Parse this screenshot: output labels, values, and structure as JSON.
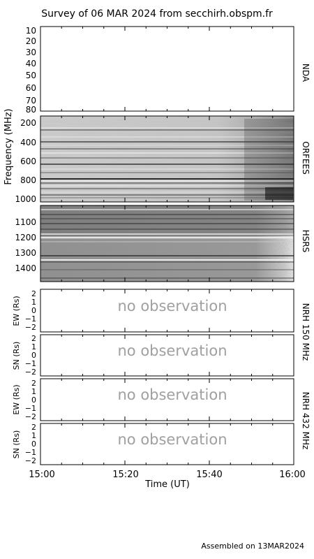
{
  "header": {
    "title": "Survey of 06 MAR 2024 from secchirh.obspm.fr"
  },
  "footer": {
    "assembled": "Assembled on 13MAR2024"
  },
  "chart_data": {
    "type": "heatmap",
    "title": "Survey of 06 MAR 2024 from secchirh.obspm.fr",
    "xlabel": "Time (UT)",
    "x_ticks": [
      "15:00",
      "15:20",
      "15:40",
      "16:00"
    ],
    "spectrogram_ylabel": "Frequency (MHz)",
    "panels": [
      {
        "id": "nda",
        "label": "NDA",
        "y_ticks": [
          "10",
          "20",
          "30",
          "40",
          "50",
          "60",
          "70",
          "80"
        ]
      },
      {
        "id": "orfees",
        "label": "ORFEES",
        "y_ticks": [
          "200",
          "400",
          "600",
          "800",
          "1000"
        ]
      },
      {
        "id": "hsrs",
        "label": "HSRS",
        "y_ticks": [
          "1100",
          "1200",
          "1300",
          "1400"
        ]
      },
      {
        "id": "nrh150-ew",
        "ylabel": "EW (Rs)",
        "y_ticks": [
          "2",
          "1",
          "0",
          "−1",
          "−2"
        ],
        "message": "no observation"
      },
      {
        "id": "nrh150-sn",
        "ylabel": "SN (Rs)",
        "y_ticks": [
          "2",
          "1",
          "0",
          "−1",
          "−2"
        ],
        "message": "no observation"
      },
      {
        "id": "nrh432-ew",
        "ylabel": "EW (Rs)",
        "y_ticks": [
          "2",
          "1",
          "0",
          "−1",
          "−2"
        ],
        "message": "no observation"
      },
      {
        "id": "nrh432-sn",
        "ylabel": "SN (Rs)",
        "y_ticks": [
          "2",
          "1",
          "0",
          "−1",
          "−2"
        ],
        "message": "no observation"
      }
    ],
    "group_labels": [
      "NRH 150 MHz",
      "NRH 432 MHz"
    ]
  }
}
